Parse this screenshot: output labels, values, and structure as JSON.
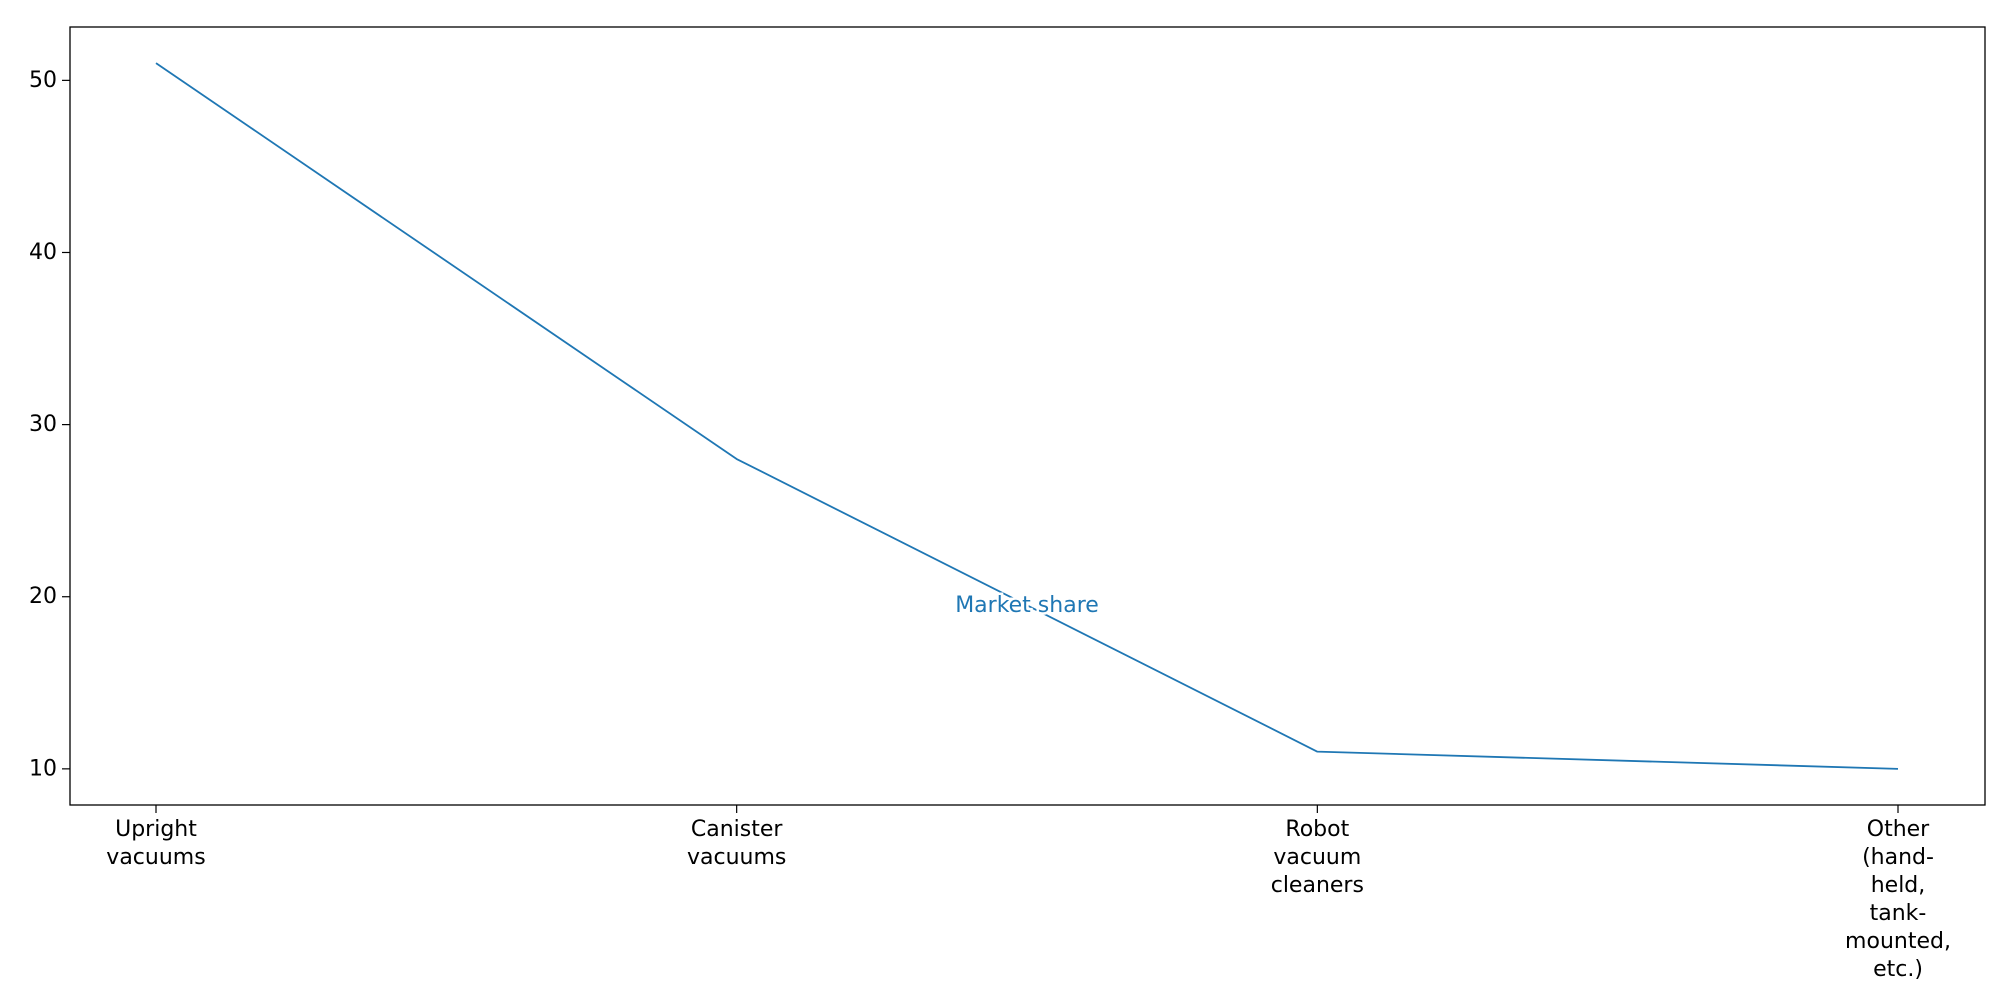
{
  "chart_data": {
    "type": "line",
    "title": "",
    "xlabel": "",
    "ylabel": "",
    "categories": [
      [
        "Upright",
        "vacuums"
      ],
      [
        "Canister",
        "vacuums"
      ],
      [
        "Robot",
        "vacuum",
        "cleaners"
      ],
      [
        "Other",
        "(hand-",
        "held,",
        "tank-",
        "mounted,",
        "etc.)"
      ]
    ],
    "series": [
      {
        "name": "Market share",
        "values": [
          51,
          28,
          11,
          10
        ],
        "color": "#1f77b4"
      }
    ],
    "ylim": [
      7.9,
      53.1
    ],
    "yticks": [
      10,
      20,
      30,
      40,
      50
    ],
    "grid": false,
    "legend": "none",
    "annotations": [
      {
        "text": "Market share",
        "anchor": "on-line"
      }
    ]
  }
}
